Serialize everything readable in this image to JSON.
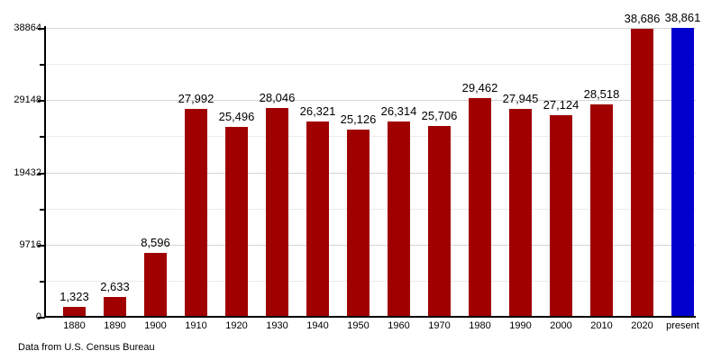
{
  "footer": {
    "source_note": "Data from U.S. Census Bureau"
  },
  "chart_data": {
    "type": "bar",
    "title": "",
    "xlabel": "",
    "ylabel": "",
    "categories": [
      "1880",
      "1890",
      "1900",
      "1910",
      "1920",
      "1930",
      "1940",
      "1950",
      "1960",
      "1970",
      "1980",
      "1990",
      "2000",
      "2010",
      "2020",
      "present"
    ],
    "values": [
      1323,
      2633,
      8596,
      27992,
      25496,
      28046,
      26321,
      25126,
      26314,
      25706,
      29462,
      27945,
      27124,
      28518,
      38686,
      38861
    ],
    "value_labels": [
      "1,323",
      "2,633",
      "8,596",
      "27,992",
      "25,496",
      "28,046",
      "26,321",
      "25,126",
      "26,314",
      "25,706",
      "29,462",
      "27,945",
      "27,124",
      "28,518",
      "38,686",
      "38,861"
    ],
    "colors": {
      "bar_default": "#a00000",
      "bar_present": "#0000cc",
      "axis": "#000000",
      "grid_major": "#d4d4d4",
      "grid_minor": "#ebebeb"
    },
    "y_axis": {
      "max": 38864,
      "major_ticks": [
        0,
        9716,
        19432,
        29148,
        38864
      ],
      "major_tick_labels": [
        "0",
        "9716",
        "19432",
        "29148",
        "38864"
      ],
      "minor_ticks": [
        4858,
        14574,
        24290,
        34006
      ]
    },
    "grid": true,
    "legend": false,
    "annotation": "Data from U.S. Census Bureau"
  }
}
